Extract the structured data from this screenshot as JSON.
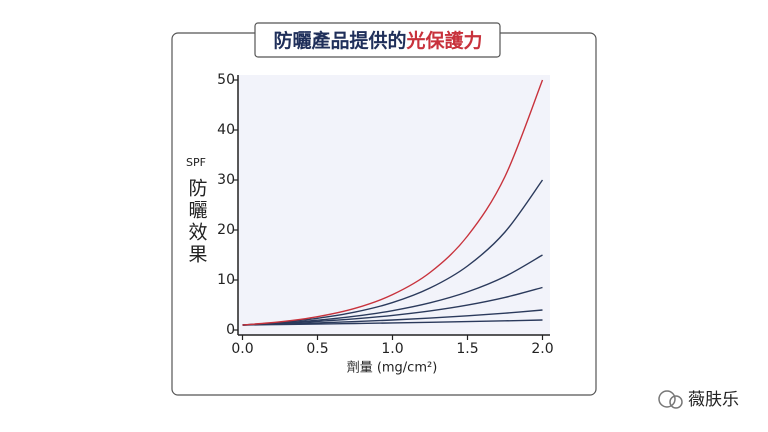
{
  "chart_data": {
    "type": "line",
    "title": {
      "main": "防曬產品提供的",
      "highlight": "光保護力"
    },
    "y_label_top": "SPF",
    "y_label": "防曬效果",
    "x_label": "劑量 (mg/cm²)",
    "x": [
      0,
      0.25,
      0.5,
      0.75,
      1.0,
      1.25,
      1.5,
      1.75,
      2.0
    ],
    "series": [
      {
        "color": "#c8323c",
        "values": [
          1,
          1.63,
          2.66,
          4.33,
          7.07,
          11.5,
          18.8,
          30.7,
          50
        ]
      },
      {
        "color": "#2b3a5c",
        "values": [
          1,
          1.53,
          2.34,
          3.58,
          5.48,
          8.39,
          12.8,
          19.6,
          30
        ]
      },
      {
        "color": "#2b3a5c",
        "values": [
          1,
          1.4,
          1.97,
          2.76,
          3.87,
          5.43,
          7.62,
          10.7,
          15
        ]
      },
      {
        "color": "#2b3a5c",
        "values": [
          1,
          1.31,
          1.71,
          2.23,
          2.92,
          3.81,
          4.98,
          6.51,
          8.5
        ]
      },
      {
        "color": "#2b3a5c",
        "values": [
          1,
          1.19,
          1.41,
          1.68,
          2,
          2.38,
          2.83,
          3.36,
          4
        ]
      },
      {
        "color": "#2b3a5c",
        "values": [
          1,
          1.09,
          1.19,
          1.3,
          1.41,
          1.54,
          1.68,
          1.83,
          2
        ]
      }
    ],
    "xlim": [
      -0.03,
      2.05
    ],
    "ylim": [
      -1,
      51
    ],
    "xticks": [
      {
        "value": 0,
        "label": "0.0"
      },
      0.5,
      {
        "value": 1,
        "label": "1.0"
      },
      1.5,
      {
        "value": 2,
        "label": "2.0"
      }
    ],
    "yticks": [
      0,
      10,
      20,
      30,
      40,
      50
    ],
    "title_colors": [
      "#1f2f5a",
      "#c8323c"
    ]
  },
  "watermark": "薇肤乐"
}
